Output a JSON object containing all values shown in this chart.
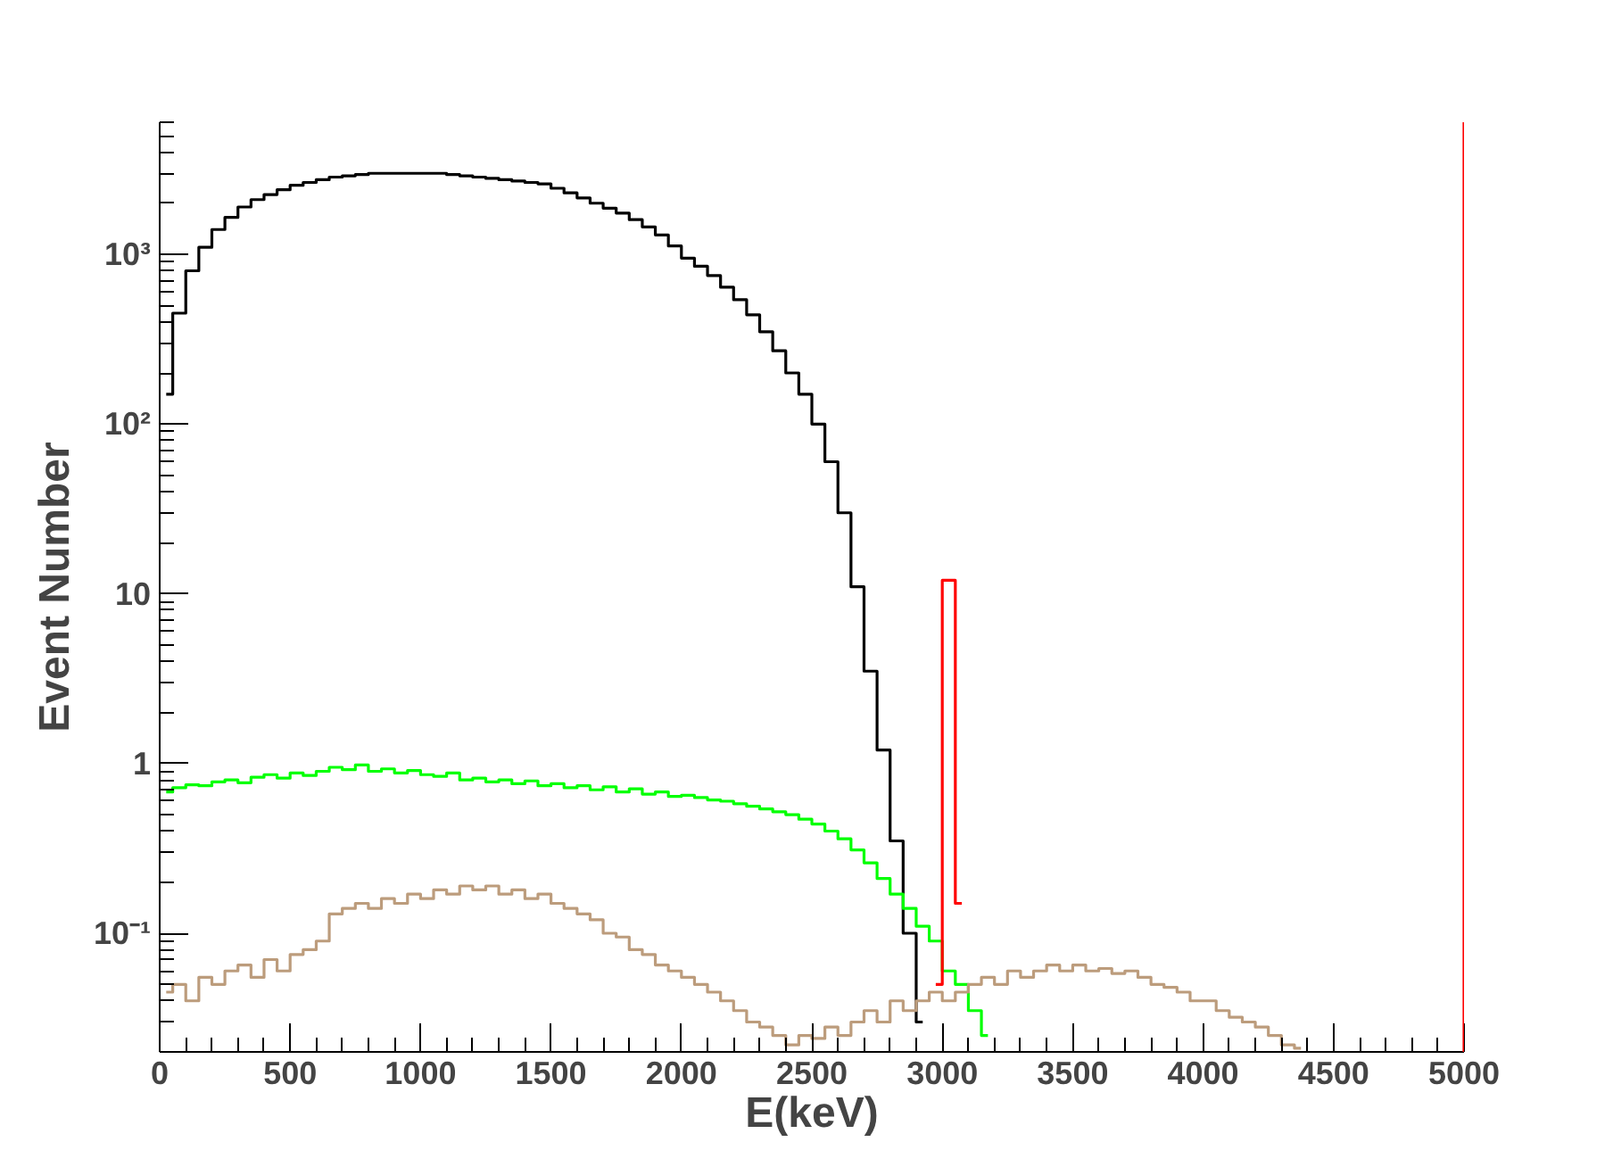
{
  "chart_data": {
    "type": "step",
    "xlabel": "E(keV)",
    "ylabel": "Event Number",
    "series": [
      {
        "color": "#000000",
        "x": [
          25,
          75,
          125,
          175,
          225,
          275,
          325,
          375,
          425,
          475,
          525,
          575,
          625,
          675,
          725,
          775,
          825,
          875,
          925,
          975,
          1025,
          1075,
          1125,
          1175,
          1225,
          1275,
          1325,
          1375,
          1425,
          1475,
          1525,
          1575,
          1625,
          1675,
          1725,
          1775,
          1825,
          1875,
          1925,
          1975,
          2025,
          2075,
          2125,
          2175,
          2225,
          2275,
          2325,
          2375,
          2425,
          2475,
          2525,
          2575,
          2625,
          2675,
          2725,
          2775,
          2825,
          2875,
          2925
        ],
        "values": [
          150,
          450,
          800,
          1100,
          1400,
          1650,
          1900,
          2100,
          2250,
          2400,
          2550,
          2650,
          2750,
          2850,
          2900,
          2950,
          3000,
          3000,
          3000,
          3000,
          3000,
          3000,
          2950,
          2900,
          2850,
          2800,
          2750,
          2700,
          2650,
          2600,
          2450,
          2300,
          2150,
          2000,
          1870,
          1750,
          1600,
          1450,
          1300,
          1120,
          950,
          850,
          750,
          640,
          540,
          440,
          350,
          270,
          200,
          150,
          100,
          60,
          30,
          11,
          3.5,
          1.2,
          0.35,
          0.1,
          0.03
        ]
      },
      {
        "color": "#00ff00",
        "x": [
          25,
          75,
          125,
          175,
          225,
          275,
          325,
          375,
          425,
          475,
          525,
          575,
          625,
          675,
          725,
          775,
          825,
          875,
          925,
          975,
          1025,
          1075,
          1125,
          1175,
          1225,
          1275,
          1325,
          1375,
          1425,
          1475,
          1525,
          1575,
          1625,
          1675,
          1725,
          1775,
          1825,
          1875,
          1925,
          1975,
          2025,
          2075,
          2125,
          2175,
          2225,
          2275,
          2325,
          2375,
          2425,
          2475,
          2525,
          2575,
          2625,
          2675,
          2725,
          2775,
          2825,
          2875,
          2925,
          2975,
          3025,
          3075,
          3125,
          3175
        ],
        "values": [
          0.68,
          0.72,
          0.75,
          0.74,
          0.78,
          0.8,
          0.77,
          0.83,
          0.86,
          0.82,
          0.88,
          0.85,
          0.9,
          0.95,
          0.92,
          0.98,
          0.9,
          0.93,
          0.88,
          0.91,
          0.86,
          0.84,
          0.88,
          0.8,
          0.82,
          0.78,
          0.8,
          0.76,
          0.79,
          0.74,
          0.76,
          0.72,
          0.74,
          0.7,
          0.73,
          0.68,
          0.71,
          0.66,
          0.68,
          0.64,
          0.65,
          0.63,
          0.61,
          0.6,
          0.58,
          0.56,
          0.54,
          0.52,
          0.5,
          0.47,
          0.44,
          0.4,
          0.36,
          0.31,
          0.26,
          0.21,
          0.17,
          0.14,
          0.11,
          0.09,
          0.06,
          0.05,
          0.035,
          0.025
        ]
      },
      {
        "color": "#bc9c7c",
        "x": [
          25,
          75,
          125,
          175,
          225,
          275,
          325,
          375,
          425,
          475,
          525,
          575,
          625,
          675,
          725,
          775,
          825,
          875,
          925,
          975,
          1025,
          1075,
          1125,
          1175,
          1225,
          1275,
          1325,
          1375,
          1425,
          1475,
          1525,
          1575,
          1625,
          1675,
          1725,
          1775,
          1825,
          1875,
          1925,
          1975,
          2025,
          2075,
          2125,
          2175,
          2225,
          2275,
          2325,
          2375,
          2425,
          2475,
          2525,
          2575,
          2625,
          2675,
          2725,
          2775,
          2825,
          2875,
          2925,
          2975,
          3025,
          3075,
          3125,
          3175,
          3225,
          3275,
          3325,
          3375,
          3425,
          3475,
          3525,
          3575,
          3625,
          3675,
          3725,
          3775,
          3825,
          3875,
          3925,
          3975,
          4025,
          4075,
          4125,
          4175,
          4225,
          4275,
          4325,
          4375
        ],
        "values": [
          0.045,
          0.05,
          0.04,
          0.055,
          0.05,
          0.06,
          0.065,
          0.055,
          0.07,
          0.06,
          0.075,
          0.08,
          0.09,
          0.13,
          0.14,
          0.15,
          0.14,
          0.16,
          0.15,
          0.17,
          0.16,
          0.18,
          0.17,
          0.19,
          0.18,
          0.19,
          0.17,
          0.18,
          0.16,
          0.17,
          0.15,
          0.14,
          0.13,
          0.12,
          0.1,
          0.095,
          0.08,
          0.075,
          0.065,
          0.06,
          0.055,
          0.05,
          0.045,
          0.04,
          0.035,
          0.03,
          0.028,
          0.025,
          0.022,
          0.025,
          0.024,
          0.028,
          0.025,
          0.03,
          0.035,
          0.03,
          0.04,
          0.035,
          0.04,
          0.045,
          0.04,
          0.045,
          0.05,
          0.055,
          0.05,
          0.06,
          0.055,
          0.06,
          0.065,
          0.06,
          0.065,
          0.06,
          0.062,
          0.058,
          0.06,
          0.055,
          0.05,
          0.048,
          0.045,
          0.04,
          0.04,
          0.035,
          0.032,
          0.03,
          0.028,
          0.025,
          0.022,
          0.021
        ]
      },
      {
        "color": "#ff0000",
        "x": [
          2975,
          3025,
          3075
        ],
        "values": [
          0.05,
          12,
          0.15
        ]
      }
    ],
    "ref_lines": [
      {
        "axis": "x",
        "value": 5000,
        "color": "#ff0000"
      }
    ],
    "log": "y",
    "grid": false,
    "xlim": [
      0,
      5000
    ],
    "ylim": [
      0.02,
      6000
    ],
    "xticks": [
      0,
      500,
      1000,
      1500,
      2000,
      2500,
      3000,
      3500,
      4000,
      4500,
      5000
    ],
    "yticks": [
      {
        "value": 0.1,
        "label": "10⁻¹"
      },
      1,
      10,
      {
        "value": 100,
        "label": "10²"
      },
      {
        "value": 1000,
        "label": "10³"
      }
    ]
  }
}
